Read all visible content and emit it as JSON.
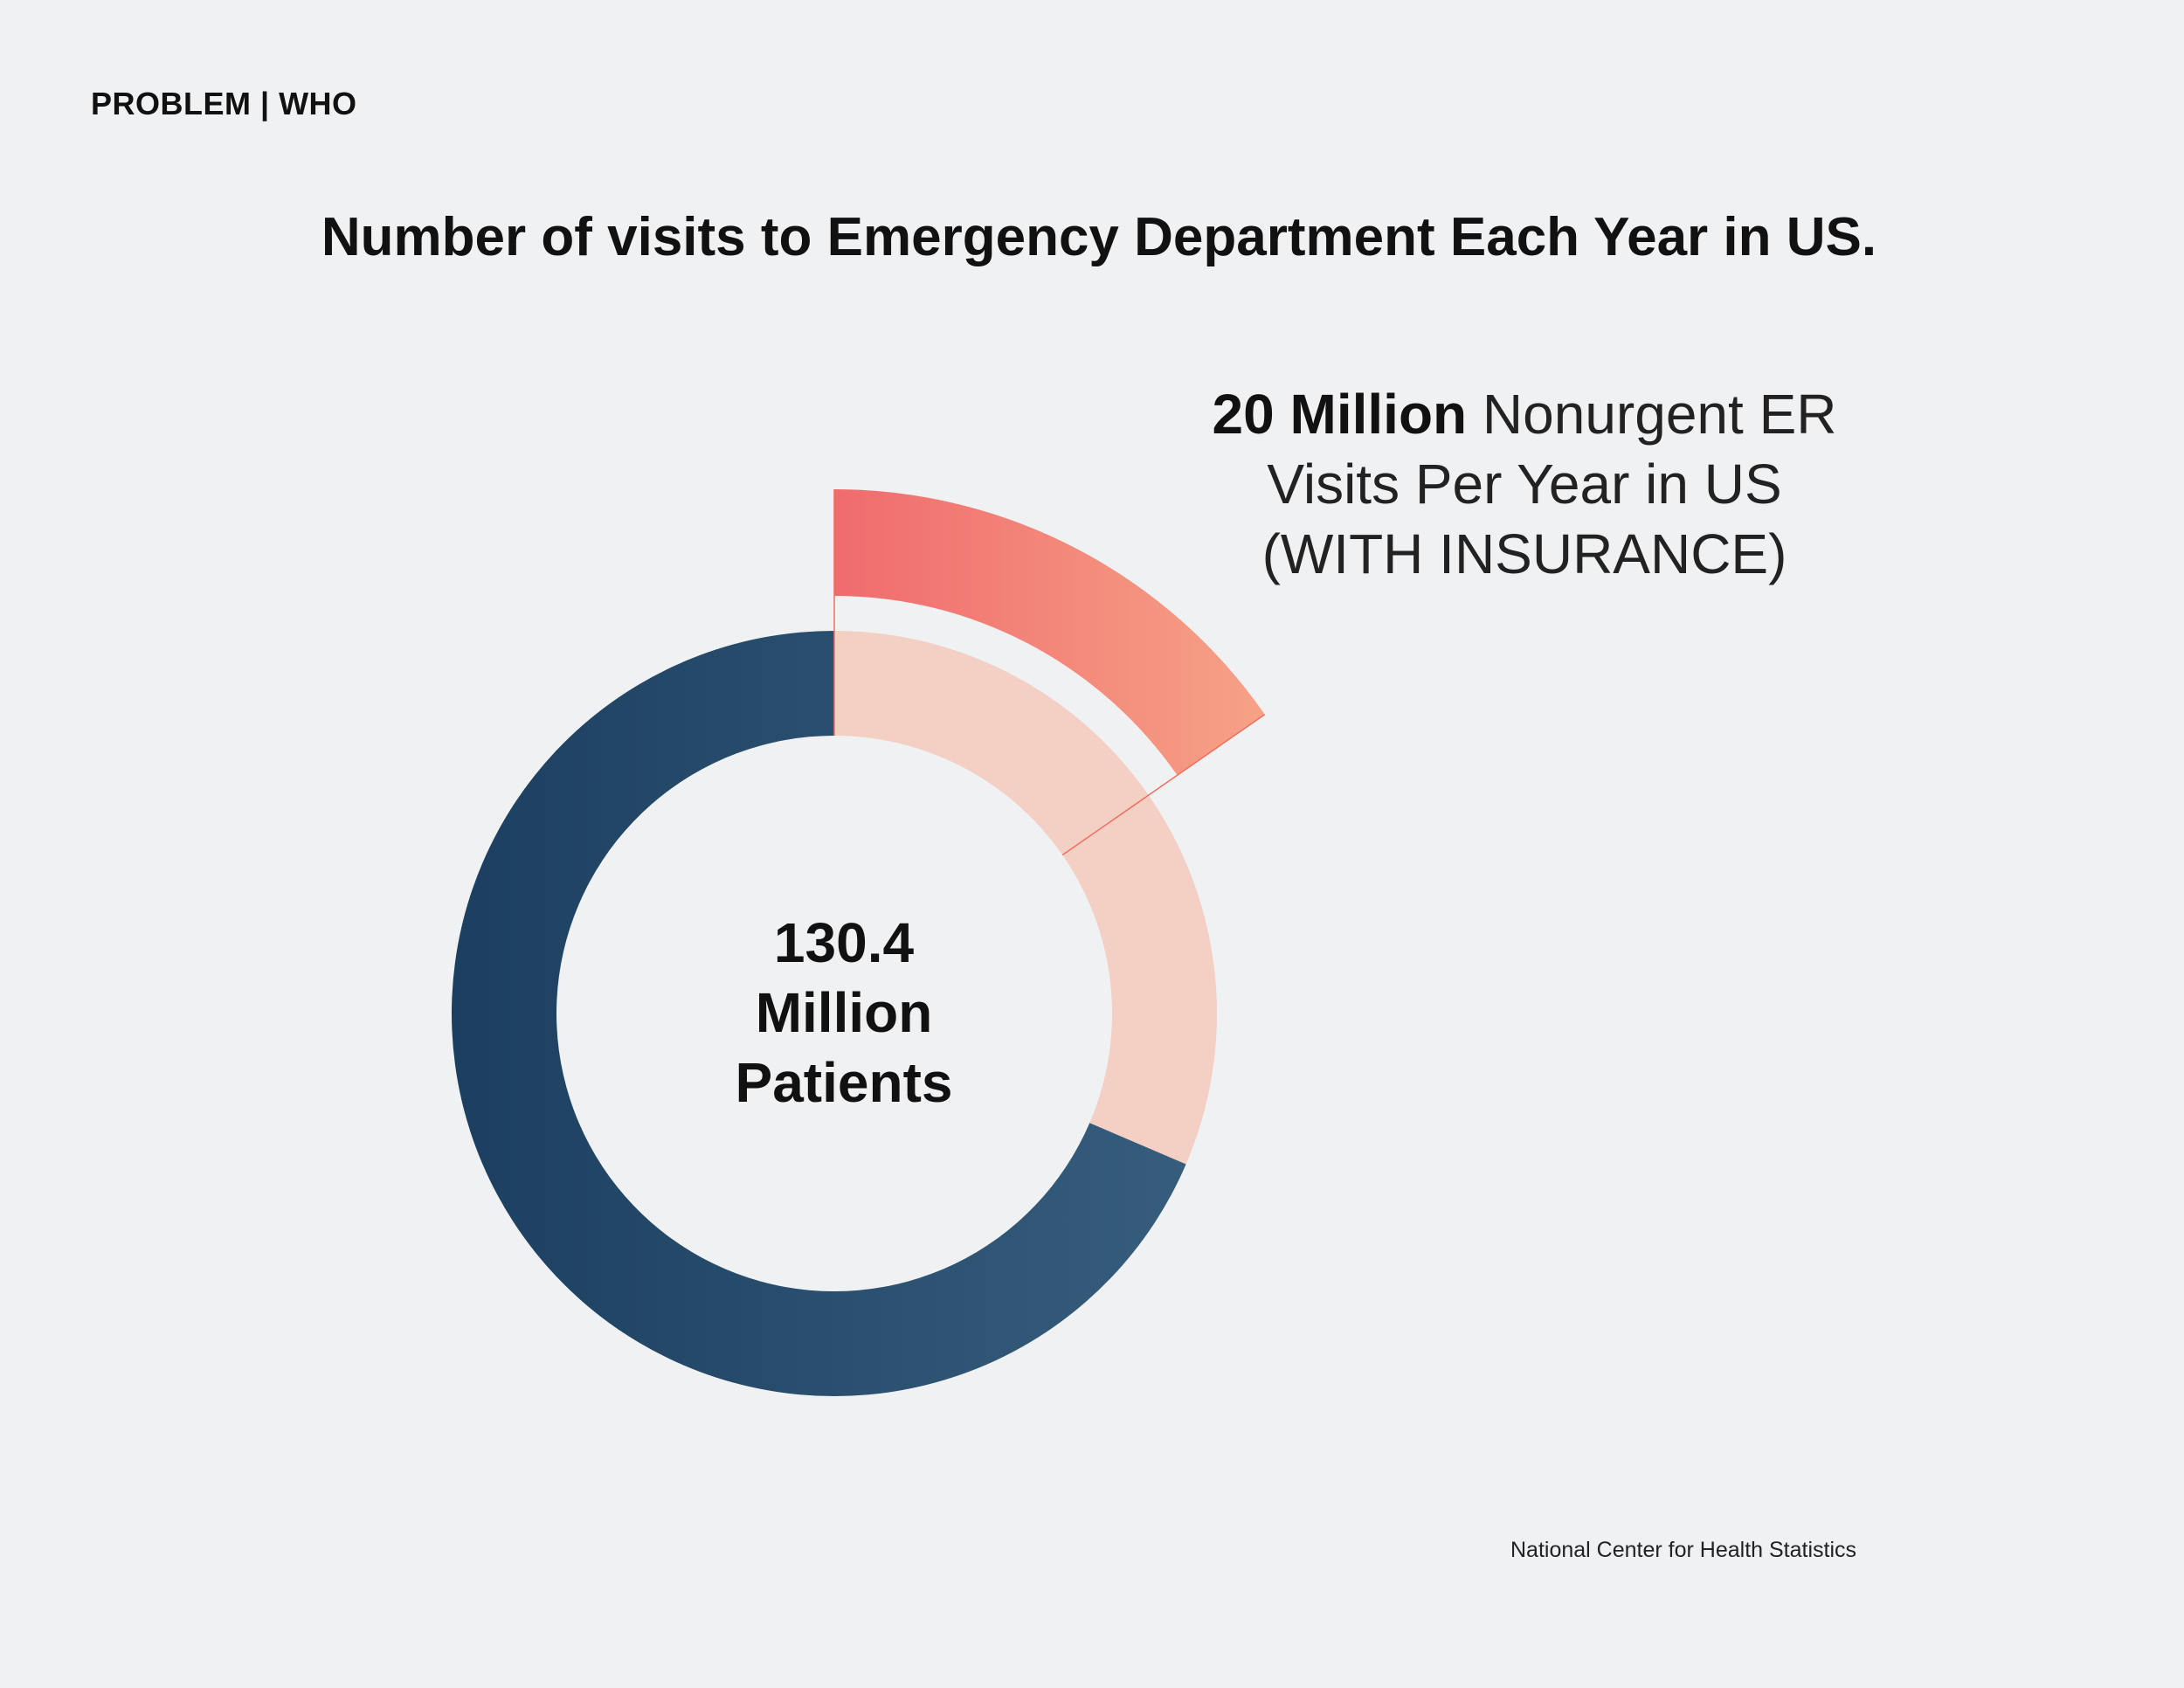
{
  "header": {
    "section_label": "PROBLEM | WHO"
  },
  "chart_data": {
    "type": "pie",
    "title": "Number of visits to Emergency Department Each Year in US.",
    "style": "donut with exploded segment",
    "total": 130.4,
    "total_unit": "Million",
    "center_label": {
      "value": "130.4",
      "unit": "Million",
      "text": "Patients"
    },
    "slices": [
      {
        "label": "Nonurgent ER Visits Per Year in US (WITH INSURANCE)",
        "value": 20,
        "exploded": true,
        "color": "#f49a84"
      },
      {
        "label": "",
        "value": 21,
        "exploded": false,
        "color": "#f3cfc4"
      },
      {
        "label": "",
        "value": 89.4,
        "exploded": false,
        "color": "#23496a"
      }
    ],
    "annotation": {
      "bold": "20 Million",
      "line1": "Nonurgent ER",
      "line2": "Visits Per Year in US",
      "line3": "(WITH INSURANCE)"
    },
    "colors": {
      "highlight_start": "#f06b6d",
      "highlight_end": "#f7a98a",
      "light_segment": "#f3cfc4",
      "dark_start": "#1c3f5f",
      "dark_end": "#375d7d",
      "connector": "#ee6f5e"
    }
  },
  "footer": {
    "source": "National Center for Health Statistics"
  }
}
